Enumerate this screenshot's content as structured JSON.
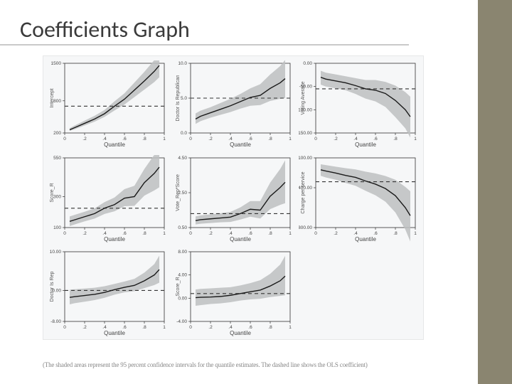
{
  "title": "Coefficients Graph",
  "caption": "(The shaded areas represent the 95 percent confidence intervals for the quantile estimates. The dashed line shows the OLS coefficient)",
  "chart": {
    "x_ticks": [
      0,
      0.2,
      0.4,
      0.6,
      0.8,
      1
    ],
    "x_tick_labels": [
      "0",
      ".2",
      ".4",
      ".6",
      ".8",
      "1"
    ],
    "x_label": "Quantile",
    "panel_bg": "#f6f7f8",
    "plot_bg": "#f6f7f8",
    "axis_color": "#333333",
    "line_color": "#1a1a1a",
    "ols_dash_color": "#333333",
    "ci_fill": "#bdbfc1",
    "tick_font_size": 6.5,
    "label_font_size": 8,
    "line_width": 1.4,
    "dash_width": 1.1,
    "dash_pattern": "5,4",
    "panels": [
      {
        "ylabel": "Intercept",
        "ylim": [
          200,
          1500
        ],
        "yticks": [
          200,
          800,
          1500
        ],
        "ytick_labels": [
          "200",
          "800",
          "1500"
        ],
        "ols": 700,
        "x": [
          0.05,
          0.1,
          0.2,
          0.3,
          0.4,
          0.5,
          0.6,
          0.7,
          0.8,
          0.9,
          0.95
        ],
        "y": [
          260,
          300,
          380,
          460,
          560,
          700,
          830,
          1000,
          1170,
          1350,
          1460
        ],
        "lo": [
          240,
          270,
          340,
          410,
          500,
          620,
          730,
          870,
          1010,
          1150,
          1240
        ],
        "hi": [
          290,
          340,
          430,
          520,
          630,
          790,
          940,
          1140,
          1340,
          1560,
          1700
        ]
      },
      {
        "ylabel": "Doctor Is Republican",
        "ylim": [
          0.0,
          10.0
        ],
        "yticks": [
          0.0,
          5.0,
          10.0
        ],
        "ytick_labels": [
          "0.0",
          "5.0",
          "10.0"
        ],
        "ols": 5.0,
        "x": [
          0.05,
          0.1,
          0.2,
          0.3,
          0.4,
          0.5,
          0.6,
          0.7,
          0.8,
          0.9,
          0.95
        ],
        "y": [
          2.0,
          2.4,
          2.9,
          3.4,
          3.9,
          4.5,
          5.1,
          5.4,
          6.4,
          7.2,
          7.8
        ],
        "lo": [
          1.3,
          1.7,
          2.2,
          2.6,
          3.0,
          3.5,
          3.9,
          4.0,
          4.6,
          4.9,
          5.0
        ],
        "hi": [
          2.8,
          3.2,
          3.7,
          4.3,
          4.9,
          5.6,
          6.4,
          7.0,
          8.4,
          9.6,
          10.5
        ]
      },
      {
        "ylabel": "Voting Average",
        "ylim": [
          -150,
          0
        ],
        "yticks": [
          -150,
          -100,
          -50,
          0
        ],
        "ytick_labels": [
          "-150.00",
          "-100.00",
          "-50.00",
          "0.00"
        ],
        "ols": -55,
        "x": [
          0.05,
          0.1,
          0.2,
          0.3,
          0.4,
          0.5,
          0.6,
          0.7,
          0.8,
          0.9,
          0.95
        ],
        "y": [
          -30,
          -34,
          -38,
          -42,
          -48,
          -55,
          -58,
          -65,
          -80,
          -100,
          -115
        ],
        "lo": [
          -46,
          -50,
          -54,
          -58,
          -66,
          -76,
          -82,
          -94,
          -116,
          -140,
          -160
        ],
        "hi": [
          -16,
          -20,
          -24,
          -28,
          -32,
          -36,
          -36,
          -40,
          -48,
          -62,
          -72
        ]
      },
      {
        "ylabel": "Score_R",
        "ylim": [
          100,
          550
        ],
        "yticks": [
          100,
          300,
          550
        ],
        "ytick_labels": [
          "100",
          "300",
          "550"
        ],
        "ols": 225,
        "x": [
          0.05,
          0.1,
          0.2,
          0.3,
          0.4,
          0.5,
          0.6,
          0.7,
          0.8,
          0.9,
          0.95
        ],
        "y": [
          140,
          150,
          170,
          190,
          225,
          248,
          290,
          300,
          390,
          450,
          490
        ],
        "lo": [
          110,
          120,
          140,
          158,
          188,
          205,
          238,
          240,
          306,
          340,
          360
        ],
        "hi": [
          172,
          182,
          202,
          224,
          264,
          294,
          348,
          370,
          478,
          570,
          630
        ]
      },
      {
        "ylabel": "Vote_Rep*Score",
        "ylim": [
          0.5,
          4.5
        ],
        "yticks": [
          0.5,
          2.5,
          4.5
        ],
        "ytick_labels": [
          "0.50",
          "2.50",
          "4.50"
        ],
        "ols": 1.3,
        "x": [
          0.05,
          0.1,
          0.2,
          0.3,
          0.4,
          0.5,
          0.6,
          0.7,
          0.8,
          0.9,
          0.95
        ],
        "y": [
          0.9,
          0.95,
          1.0,
          1.05,
          1.1,
          1.3,
          1.55,
          1.5,
          2.3,
          2.8,
          3.1
        ],
        "lo": [
          0.68,
          0.72,
          0.76,
          0.8,
          0.82,
          0.96,
          1.12,
          1.02,
          1.56,
          1.8,
          1.9
        ],
        "hi": [
          1.14,
          1.2,
          1.26,
          1.32,
          1.4,
          1.66,
          2.02,
          2.02,
          3.08,
          3.86,
          4.36
        ]
      },
      {
        "ylabel": "Charge per service",
        "ylim": [
          -800,
          -100
        ],
        "yticks": [
          -800,
          -400,
          -100
        ],
        "ytick_labels": [
          "-800.00",
          "-400.00",
          "-100.00"
        ],
        "ols": -340,
        "x": [
          0.05,
          0.1,
          0.2,
          0.3,
          0.4,
          0.5,
          0.6,
          0.7,
          0.8,
          0.9,
          0.95
        ],
        "y": [
          -220,
          -232,
          -252,
          -276,
          -296,
          -332,
          -364,
          -408,
          -480,
          -600,
          -680
        ],
        "lo": [
          -280,
          -296,
          -320,
          -352,
          -380,
          -430,
          -476,
          -540,
          -648,
          -820,
          -940
        ],
        "hi": [
          -164,
          -172,
          -188,
          -204,
          -216,
          -238,
          -256,
          -282,
          -320,
          -392,
          -436
        ]
      },
      {
        "ylabel": "Doctor Is Rep",
        "ylim": [
          -8.0,
          10.0
        ],
        "yticks": [
          -8.0,
          0.0,
          10.0
        ],
        "ytick_labels": [
          "-8.00",
          "0.00",
          "10.00"
        ],
        "ols": 0.0,
        "x": [
          0.05,
          0.1,
          0.2,
          0.3,
          0.4,
          0.5,
          0.6,
          0.7,
          0.8,
          0.9,
          0.95
        ],
        "y": [
          -1.8,
          -1.6,
          -1.3,
          -1.0,
          -0.5,
          0.2,
          0.8,
          1.3,
          2.5,
          4.0,
          5.4
        ],
        "lo": [
          -3.6,
          -3.3,
          -2.9,
          -2.5,
          -1.9,
          -1.1,
          -0.5,
          -0.2,
          0.6,
          1.4,
          2.0
        ],
        "hi": [
          0.2,
          0.3,
          0.5,
          0.7,
          1.1,
          1.7,
          2.3,
          3.0,
          4.6,
          6.8,
          9.0
        ]
      },
      {
        "ylabel": "Score_R",
        "ylim": [
          -4.0,
          8.0
        ],
        "yticks": [
          -4.0,
          0.0,
          4.0,
          8.0
        ],
        "ytick_labels": [
          "-4.00",
          "0.00",
          "4.00",
          "8.00"
        ],
        "ols": 0.8,
        "x": [
          0.05,
          0.1,
          0.2,
          0.3,
          0.4,
          0.5,
          0.6,
          0.7,
          0.8,
          0.9,
          0.95
        ],
        "y": [
          0.1,
          0.15,
          0.2,
          0.3,
          0.5,
          0.8,
          1.1,
          1.4,
          2.1,
          3.0,
          3.8
        ],
        "lo": [
          -1.3,
          -1.2,
          -1.0,
          -0.9,
          -0.7,
          -0.4,
          -0.2,
          -0.1,
          0.2,
          0.4,
          0.5
        ],
        "hi": [
          1.5,
          1.6,
          1.7,
          1.8,
          1.9,
          2.2,
          2.6,
          3.1,
          4.2,
          5.8,
          7.3
        ]
      },
      null
    ]
  }
}
